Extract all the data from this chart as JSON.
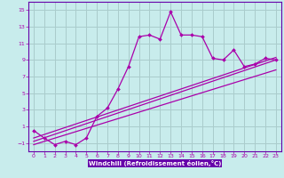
{
  "xlabel": "Windchill (Refroidissement éolien,°C)",
  "bg_color": "#c8ecec",
  "line_color": "#aa00aa",
  "grid_color": "#aacccc",
  "spine_color": "#6600aa",
  "xlim": [
    -0.5,
    23.5
  ],
  "ylim": [
    -2.0,
    16.0
  ],
  "yticks": [
    -1,
    1,
    3,
    5,
    7,
    9,
    11,
    13,
    15
  ],
  "xticks": [
    0,
    1,
    2,
    3,
    4,
    5,
    6,
    7,
    8,
    9,
    10,
    11,
    12,
    13,
    14,
    15,
    16,
    17,
    18,
    19,
    20,
    21,
    22,
    23
  ],
  "main_x": [
    0,
    1,
    2,
    3,
    4,
    5,
    6,
    7,
    8,
    9,
    10,
    11,
    12,
    13,
    14,
    15,
    16,
    17,
    18,
    19,
    20,
    21,
    22,
    23
  ],
  "main_y": [
    0.5,
    -0.4,
    -1.2,
    -0.8,
    -1.2,
    -0.4,
    2.2,
    3.2,
    5.5,
    8.2,
    11.8,
    12.0,
    11.5,
    14.8,
    12.0,
    12.0,
    11.8,
    9.2,
    9.0,
    10.2,
    8.2,
    8.5,
    9.2,
    9.0
  ],
  "line1_x": [
    0,
    23
  ],
  "line1_y": [
    -0.8,
    9.0
  ],
  "line2_x": [
    0,
    23
  ],
  "line2_y": [
    -1.2,
    7.8
  ],
  "line3_x": [
    0,
    23
  ],
  "line3_y": [
    -0.4,
    9.3
  ],
  "xlabel_bg": "#6600aa",
  "xlabel_fg": "#ffffff"
}
